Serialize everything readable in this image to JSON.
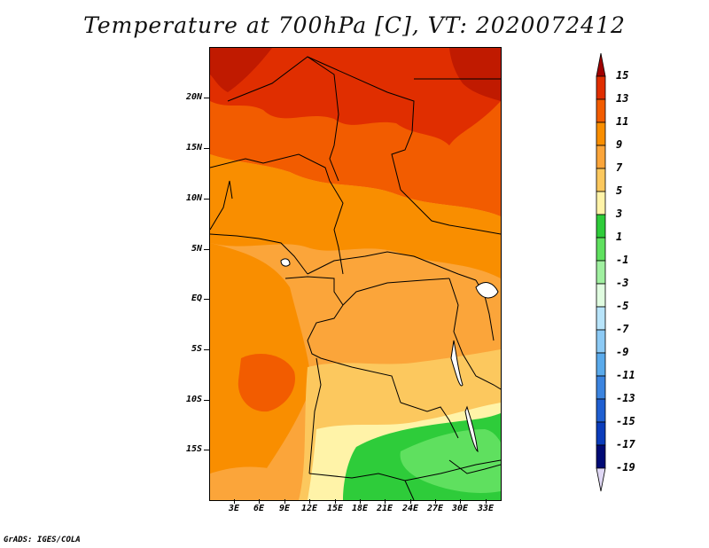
{
  "title": "Temperature at 700hPa [C], VT: 2020072412",
  "credit": "GrADS: IGES/COLA",
  "y_ticks": [
    "20N",
    "15N",
    "10N",
    "5N",
    "EQ",
    "5S",
    "10S",
    "15S"
  ],
  "x_ticks": [
    "3E",
    "6E",
    "9E",
    "12E",
    "15E",
    "18E",
    "21E",
    "24E",
    "27E",
    "30E",
    "33E"
  ],
  "legend": {
    "labels": [
      "15",
      "13",
      "11",
      "9",
      "7",
      "5",
      "3",
      "1",
      "-1",
      "-3",
      "-5",
      "-7",
      "-9",
      "-11",
      "-13",
      "-15",
      "-17",
      "-19"
    ],
    "colors": [
      "#a00000",
      "#e02e00",
      "#f25c00",
      "#f98e00",
      "#fba53a",
      "#fcc85e",
      "#fff3a8",
      "#2ecc3a",
      "#5fe05f",
      "#a0f0a0",
      "#e0fce0",
      "#b8e4fa",
      "#8ccaf5",
      "#5aaaeb",
      "#3b84df",
      "#1f5fd1",
      "#0b3cbb",
      "#000a75",
      "#e0d8f5"
    ]
  },
  "chart_data": {
    "type": "heatmap",
    "title": "Temperature at 700hPa [C], VT: 2020072412",
    "region": "Central Africa",
    "lon_range": [
      0,
      34.5
    ],
    "lat_range": [
      -20,
      24.5
    ],
    "colorbar_range": [
      -19,
      15
    ],
    "colorbar_interval": 2,
    "units": "C",
    "valid_time": "2020072412"
  }
}
